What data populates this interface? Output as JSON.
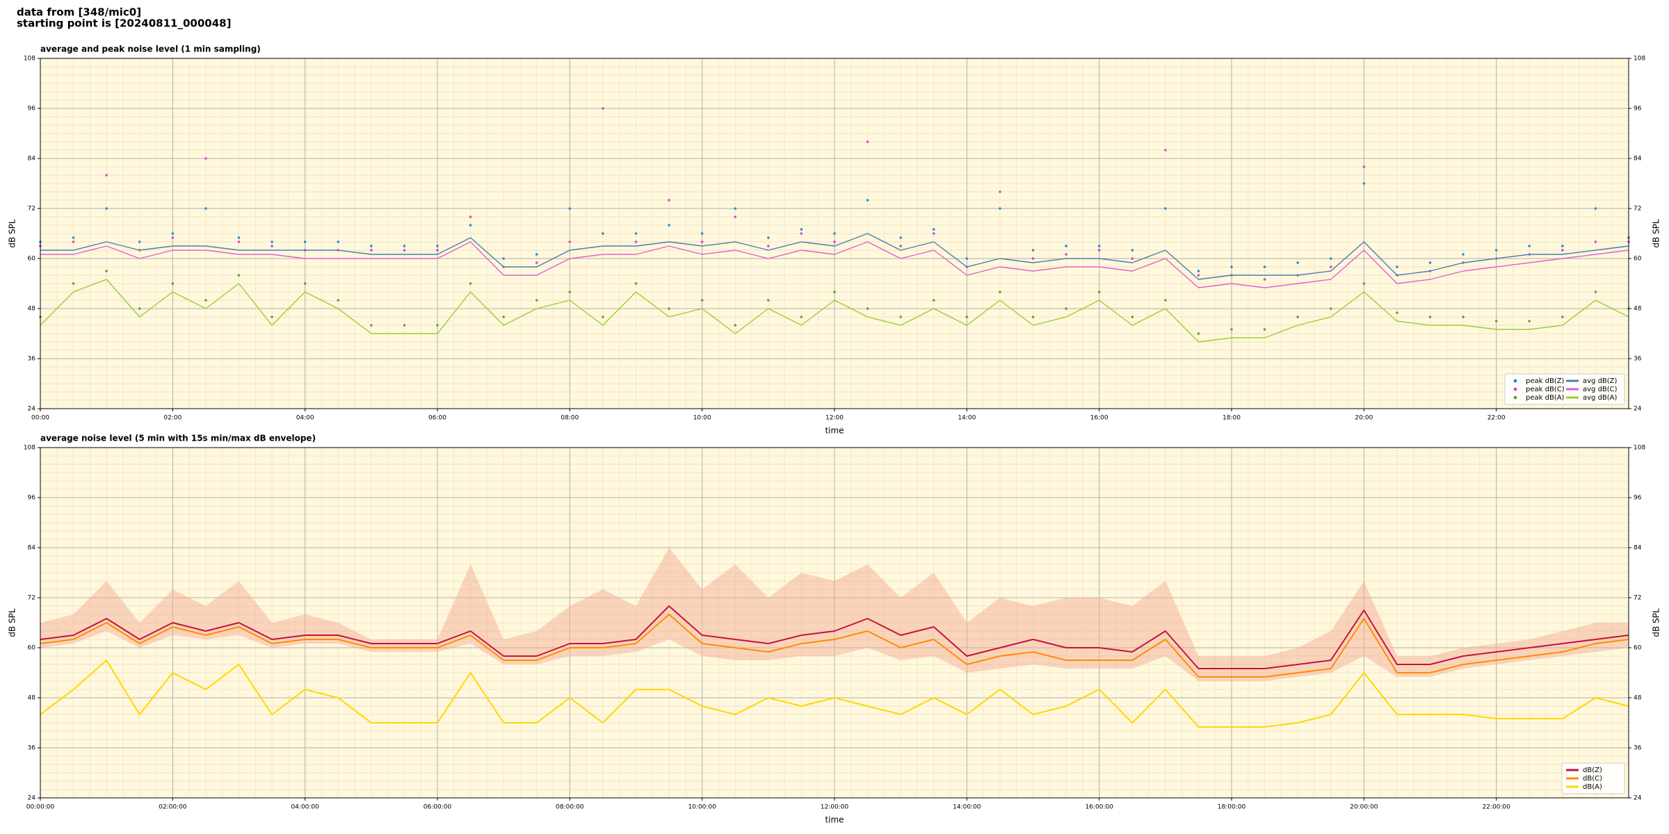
{
  "header": {
    "line1": "data from [348/mic0]",
    "line2": "starting point is [20240811_000048]"
  },
  "chart_data": [
    {
      "type": "line",
      "title": "average and peak noise level (1 min sampling)",
      "xlabel": "time",
      "ylabel": "dB SPL",
      "background": "#fff8dc",
      "grid": true,
      "minor_grid": true,
      "legend": "lower right",
      "x": [
        0,
        0.5,
        1,
        1.5,
        2,
        2.5,
        3,
        3.5,
        4,
        4.5,
        5,
        5.5,
        6,
        6.5,
        7,
        7.5,
        8,
        8.5,
        9,
        9.5,
        10,
        10.5,
        11,
        11.5,
        12,
        12.5,
        13,
        13.5,
        14,
        14.5,
        15,
        15.5,
        16,
        16.5,
        17,
        17.5,
        18,
        18.5,
        19,
        19.5,
        20,
        20.5,
        21,
        21.5,
        22,
        22.5,
        23,
        23.5,
        24
      ],
      "xlim": [
        0,
        24
      ],
      "xticks": [
        {
          "value": 0,
          "label": "00:00"
        },
        {
          "value": 2,
          "label": "02:00"
        },
        {
          "value": 4,
          "label": "04:00"
        },
        {
          "value": 6,
          "label": "06:00"
        },
        {
          "value": 8,
          "label": "08:00"
        },
        {
          "value": 10,
          "label": "10:00"
        },
        {
          "value": 12,
          "label": "12:00"
        },
        {
          "value": 14,
          "label": "14:00"
        },
        {
          "value": 16,
          "label": "16:00"
        },
        {
          "value": 18,
          "label": "18:00"
        },
        {
          "value": 20,
          "label": "20:00"
        },
        {
          "value": 22,
          "label": "22:00"
        }
      ],
      "ylim": [
        24,
        108
      ],
      "yticks": [
        24,
        36,
        48,
        60,
        72,
        84,
        96,
        108
      ],
      "series": [
        {
          "name": "peak dB(Z)",
          "style": "points",
          "color": "#1f8fd6",
          "values": [
            64,
            65,
            72,
            64,
            66,
            72,
            65,
            64,
            64,
            64,
            63,
            63,
            63,
            68,
            60,
            61,
            72,
            66,
            66,
            68,
            66,
            72,
            65,
            67,
            66,
            74,
            65,
            67,
            60,
            72,
            62,
            63,
            63,
            62,
            72,
            57,
            58,
            58,
            59,
            60,
            78,
            58,
            59,
            61,
            62,
            63,
            63,
            72,
            65
          ]
        },
        {
          "name": "peak dB(C)",
          "style": "points",
          "color": "#e040d0",
          "values": [
            63,
            64,
            80,
            62,
            65,
            84,
            64,
            63,
            62,
            62,
            62,
            62,
            62,
            70,
            58,
            59,
            64,
            96,
            64,
            74,
            64,
            70,
            63,
            66,
            64,
            88,
            63,
            66,
            58,
            76,
            60,
            61,
            62,
            60,
            86,
            56,
            56,
            55,
            56,
            58,
            82,
            56,
            57,
            59,
            60,
            61,
            62,
            64,
            64
          ]
        },
        {
          "name": "peak dB(A)",
          "style": "points",
          "color": "#6a9a3a",
          "values": [
            46,
            54,
            57,
            48,
            54,
            50,
            56,
            46,
            54,
            50,
            44,
            44,
            44,
            54,
            46,
            50,
            52,
            46,
            54,
            48,
            50,
            44,
            50,
            46,
            52,
            48,
            46,
            50,
            46,
            52,
            46,
            48,
            52,
            46,
            50,
            42,
            43,
            43,
            46,
            48,
            54,
            47,
            46,
            46,
            45,
            45,
            46,
            52,
            48
          ]
        },
        {
          "name": "avg dB(Z)",
          "style": "line",
          "color": "#4a7fb0",
          "values": [
            62,
            62,
            64,
            62,
            63,
            63,
            62,
            62,
            62,
            62,
            61,
            61,
            61,
            65,
            58,
            58,
            62,
            63,
            63,
            64,
            63,
            64,
            62,
            64,
            63,
            66,
            62,
            64,
            58,
            60,
            59,
            60,
            60,
            59,
            62,
            55,
            56,
            56,
            56,
            57,
            64,
            56,
            57,
            59,
            60,
            61,
            61,
            62,
            63
          ]
        },
        {
          "name": "avg dB(C)",
          "style": "line",
          "color": "#e060d0",
          "values": [
            61,
            61,
            63,
            60,
            62,
            62,
            61,
            61,
            60,
            60,
            60,
            60,
            60,
            64,
            56,
            56,
            60,
            61,
            61,
            63,
            61,
            62,
            60,
            62,
            61,
            64,
            60,
            62,
            56,
            58,
            57,
            58,
            58,
            57,
            60,
            53,
            54,
            53,
            54,
            55,
            62,
            54,
            55,
            57,
            58,
            59,
            60,
            61,
            62
          ]
        },
        {
          "name": "avg dB(A)",
          "style": "line",
          "color": "#9acd32",
          "values": [
            44,
            52,
            55,
            46,
            52,
            48,
            54,
            44,
            52,
            48,
            42,
            42,
            42,
            52,
            44,
            48,
            50,
            44,
            52,
            46,
            48,
            42,
            48,
            44,
            50,
            46,
            44,
            48,
            44,
            50,
            44,
            46,
            50,
            44,
            48,
            40,
            41,
            41,
            44,
            46,
            52,
            45,
            44,
            44,
            43,
            43,
            44,
            50,
            46
          ]
        }
      ]
    },
    {
      "type": "line",
      "title": "average noise level (5 min with 15s min/max dB envelope)",
      "xlabel": "time",
      "ylabel": "dB SPL",
      "background": "#fff8dc",
      "grid": true,
      "minor_grid": true,
      "legend": "lower right",
      "x": [
        0,
        0.5,
        1,
        1.5,
        2,
        2.5,
        3,
        3.5,
        4,
        4.5,
        5,
        5.5,
        6,
        6.5,
        7,
        7.5,
        8,
        8.5,
        9,
        9.5,
        10,
        10.5,
        11,
        11.5,
        12,
        12.5,
        13,
        13.5,
        14,
        14.5,
        15,
        15.5,
        16,
        16.5,
        17,
        17.5,
        18,
        18.5,
        19,
        19.5,
        20,
        20.5,
        21,
        21.5,
        22,
        22.5,
        23,
        23.5,
        24
      ],
      "xlim": [
        0,
        24
      ],
      "xticks": [
        {
          "value": 0,
          "label": "00:00:00"
        },
        {
          "value": 2,
          "label": "02:00:00"
        },
        {
          "value": 4,
          "label": "04:00:00"
        },
        {
          "value": 6,
          "label": "06:00:00"
        },
        {
          "value": 8,
          "label": "08:00:00"
        },
        {
          "value": 10,
          "label": "10:00:00"
        },
        {
          "value": 12,
          "label": "12:00:00"
        },
        {
          "value": 14,
          "label": "14:00:00"
        },
        {
          "value": 16,
          "label": "16:00:00"
        },
        {
          "value": 18,
          "label": "18:00:00"
        },
        {
          "value": 20,
          "label": "20:00:00"
        },
        {
          "value": 22,
          "label": "22:00:00"
        }
      ],
      "ylim": [
        24,
        108
      ],
      "yticks": [
        24,
        36,
        48,
        60,
        72,
        84,
        96,
        108
      ],
      "band": {
        "color": "#f4a890",
        "upper": [
          66,
          68,
          76,
          66,
          74,
          70,
          76,
          66,
          68,
          66,
          62,
          62,
          62,
          80,
          62,
          64,
          70,
          74,
          70,
          84,
          74,
          80,
          72,
          78,
          76,
          80,
          72,
          78,
          66,
          72,
          70,
          72,
          72,
          70,
          76,
          58,
          58,
          58,
          60,
          64,
          76,
          58,
          58,
          60,
          61,
          62,
          64,
          66,
          66
        ],
        "lower": [
          60,
          61,
          64,
          60,
          63,
          62,
          63,
          60,
          61,
          61,
          59,
          59,
          59,
          61,
          56,
          56,
          58,
          58,
          59,
          62,
          58,
          57,
          57,
          58,
          58,
          60,
          57,
          58,
          54,
          55,
          56,
          55,
          55,
          55,
          58,
          52,
          52,
          52,
          53,
          54,
          58,
          53,
          53,
          55,
          56,
          57,
          58,
          59,
          60
        ]
      },
      "series": [
        {
          "name": "dB(Z)",
          "style": "line",
          "color": "#c8103e",
          "values": [
            62,
            63,
            67,
            62,
            66,
            64,
            66,
            62,
            63,
            63,
            61,
            61,
            61,
            64,
            58,
            58,
            61,
            61,
            62,
            70,
            63,
            62,
            61,
            63,
            64,
            67,
            63,
            65,
            58,
            60,
            62,
            60,
            60,
            59,
            64,
            55,
            55,
            55,
            56,
            57,
            69,
            56,
            56,
            58,
            59,
            60,
            61,
            62,
            63
          ]
        },
        {
          "name": "dB(C)",
          "style": "line",
          "color": "#ff8c00",
          "values": [
            61,
            62,
            66,
            61,
            65,
            63,
            65,
            61,
            62,
            62,
            60,
            60,
            60,
            63,
            57,
            57,
            60,
            60,
            61,
            68,
            61,
            60,
            59,
            61,
            62,
            64,
            60,
            62,
            56,
            58,
            59,
            57,
            57,
            57,
            62,
            53,
            53,
            53,
            54,
            55,
            67,
            54,
            54,
            56,
            57,
            58,
            59,
            61,
            62
          ]
        },
        {
          "name": "dB(A)",
          "style": "line",
          "color": "#ffd700",
          "values": [
            44,
            50,
            57,
            44,
            54,
            50,
            56,
            44,
            50,
            48,
            42,
            42,
            42,
            54,
            42,
            42,
            48,
            42,
            50,
            50,
            46,
            44,
            48,
            46,
            48,
            46,
            44,
            48,
            44,
            50,
            44,
            46,
            50,
            42,
            50,
            41,
            41,
            41,
            42,
            44,
            54,
            44,
            44,
            44,
            43,
            43,
            43,
            48,
            46
          ]
        }
      ]
    }
  ]
}
